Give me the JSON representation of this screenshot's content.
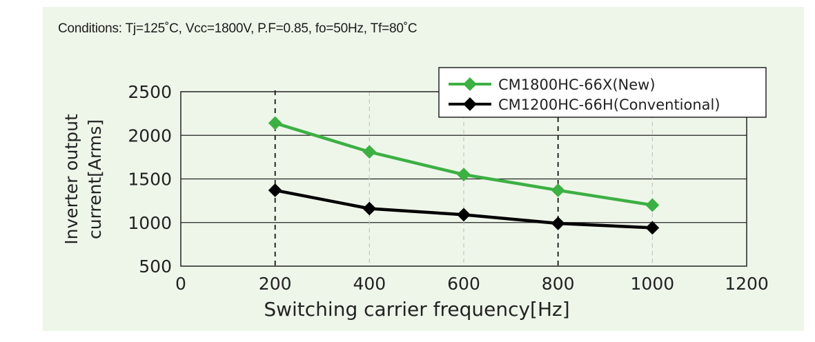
{
  "conditions": "Conditions: Tj=125˚C, Vcc=1800V, P.F=0.85, fo=50Hz, Tf=80˚C",
  "chart_data": {
    "type": "line",
    "title": "",
    "xlabel": "Switching carrier frequency[Hz]",
    "ylabel_line1": "Inverter output",
    "ylabel_line2": "current[Arms]",
    "xlim": [
      0,
      1200
    ],
    "ylim": [
      500,
      2500
    ],
    "x_ticks": [
      0,
      200,
      400,
      600,
      800,
      1000,
      1200
    ],
    "y_ticks": [
      500,
      1000,
      1500,
      2000,
      2500
    ],
    "x": [
      200,
      400,
      600,
      800,
      1000
    ],
    "grid": "horizontal solid; vertical dashed",
    "legend_position": "top-right",
    "series": [
      {
        "name": "CM1800HC-66X(New)",
        "color": "#3cb043",
        "values": [
          2140,
          1810,
          1550,
          1370,
          1200
        ]
      },
      {
        "name": "CM1200HC-66H(Conventional)",
        "color": "#000000",
        "values": [
          1370,
          1160,
          1090,
          990,
          940
        ]
      }
    ]
  }
}
